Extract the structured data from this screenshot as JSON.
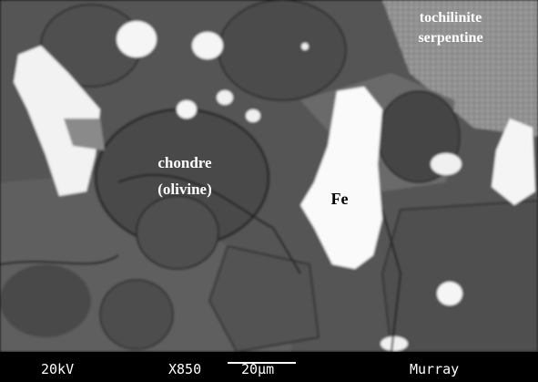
{
  "labels": {
    "tochilinite": "tochilinite",
    "serpentine": "serpentine",
    "chondre": "chondre",
    "olivine": "(olivine)",
    "fe": "Fe"
  },
  "info_bar": {
    "voltage": "20kV",
    "magnification": "X850",
    "scale": "20µm",
    "sample": "Murray"
  }
}
